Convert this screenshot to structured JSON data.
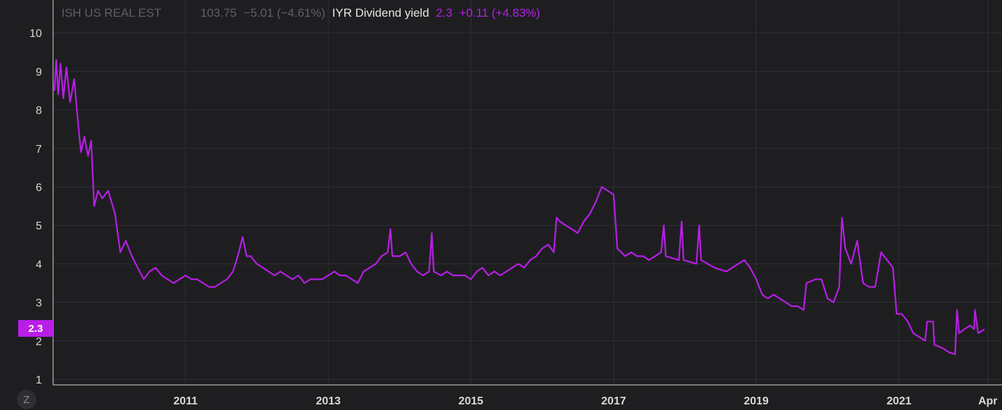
{
  "legend": {
    "ticker_name": "ISH US REAL EST",
    "ticker_price": "103.75",
    "ticker_change": "−5.01 (−4.61%)",
    "series_label": "IYR Dividend yield",
    "series_value": "2.3",
    "series_change": "+0.11 (+4.83%)"
  },
  "price_tag": "2.3",
  "zoom_button": "Z",
  "colors": {
    "background": "#1e1e21",
    "line": "#b81ee6",
    "grid": "#303035",
    "axis_text": "#d8d8d8"
  },
  "chart_data": {
    "type": "line",
    "title": "",
    "xlabel": "",
    "ylabel": "",
    "grid": true,
    "ylim": [
      0.9,
      10.3
    ],
    "x_tick_labels": [
      "2011",
      "2013",
      "2015",
      "2017",
      "2019",
      "2021",
      "Apr"
    ],
    "y_tick_labels": [
      "1",
      "2",
      "3",
      "4",
      "5",
      "6",
      "7",
      "8",
      "9",
      "10"
    ],
    "series": [
      {
        "name": "IYR Dividend yield",
        "color": "#b81ee6",
        "points": [
          [
            "2009-03-01",
            8.5
          ],
          [
            "2009-03-10",
            9.3
          ],
          [
            "2009-03-20",
            8.4
          ],
          [
            "2009-04-01",
            9.2
          ],
          [
            "2009-04-15",
            8.3
          ],
          [
            "2009-05-01",
            9.1
          ],
          [
            "2009-05-20",
            8.2
          ],
          [
            "2009-06-10",
            8.8
          ],
          [
            "2009-07-01",
            7.6
          ],
          [
            "2009-07-15",
            6.9
          ],
          [
            "2009-08-01",
            7.3
          ],
          [
            "2009-08-20",
            6.8
          ],
          [
            "2009-09-05",
            7.2
          ],
          [
            "2009-09-20",
            5.5
          ],
          [
            "2009-10-10",
            5.9
          ],
          [
            "2009-11-01",
            5.7
          ],
          [
            "2009-12-01",
            5.9
          ],
          [
            "2010-01-05",
            5.3
          ],
          [
            "2010-02-01",
            4.3
          ],
          [
            "2010-03-01",
            4.6
          ],
          [
            "2010-04-01",
            4.2
          ],
          [
            "2010-05-01",
            3.9
          ],
          [
            "2010-06-01",
            3.6
          ],
          [
            "2010-07-01",
            3.8
          ],
          [
            "2010-08-01",
            3.9
          ],
          [
            "2010-09-01",
            3.7
          ],
          [
            "2010-10-01",
            3.6
          ],
          [
            "2010-11-01",
            3.5
          ],
          [
            "2010-12-01",
            3.6
          ],
          [
            "2011-01-01",
            3.7
          ],
          [
            "2011-02-01",
            3.6
          ],
          [
            "2011-03-01",
            3.6
          ],
          [
            "2011-04-01",
            3.5
          ],
          [
            "2011-05-01",
            3.4
          ],
          [
            "2011-06-01",
            3.4
          ],
          [
            "2011-07-01",
            3.5
          ],
          [
            "2011-08-01",
            3.6
          ],
          [
            "2011-09-01",
            3.8
          ],
          [
            "2011-10-01",
            4.3
          ],
          [
            "2011-10-20",
            4.7
          ],
          [
            "2011-11-10",
            4.2
          ],
          [
            "2011-12-01",
            4.2
          ],
          [
            "2012-01-01",
            4.0
          ],
          [
            "2012-02-01",
            3.9
          ],
          [
            "2012-03-01",
            3.8
          ],
          [
            "2012-04-01",
            3.7
          ],
          [
            "2012-05-01",
            3.8
          ],
          [
            "2012-06-01",
            3.7
          ],
          [
            "2012-07-01",
            3.6
          ],
          [
            "2012-08-01",
            3.7
          ],
          [
            "2012-09-01",
            3.5
          ],
          [
            "2012-10-01",
            3.6
          ],
          [
            "2012-11-01",
            3.6
          ],
          [
            "2012-12-01",
            3.6
          ],
          [
            "2013-01-01",
            3.7
          ],
          [
            "2013-02-01",
            3.8
          ],
          [
            "2013-03-01",
            3.7
          ],
          [
            "2013-04-01",
            3.7
          ],
          [
            "2013-05-01",
            3.6
          ],
          [
            "2013-06-01",
            3.5
          ],
          [
            "2013-07-01",
            3.8
          ],
          [
            "2013-08-01",
            3.9
          ],
          [
            "2013-09-01",
            4.0
          ],
          [
            "2013-10-01",
            4.2
          ],
          [
            "2013-11-01",
            4.3
          ],
          [
            "2013-11-15",
            4.9
          ],
          [
            "2013-11-25",
            4.2
          ],
          [
            "2014-01-01",
            4.2
          ],
          [
            "2014-02-01",
            4.3
          ],
          [
            "2014-03-01",
            4.0
          ],
          [
            "2014-04-01",
            3.8
          ],
          [
            "2014-05-01",
            3.7
          ],
          [
            "2014-06-01",
            3.8
          ],
          [
            "2014-06-15",
            4.8
          ],
          [
            "2014-06-25",
            3.8
          ],
          [
            "2014-08-01",
            3.7
          ],
          [
            "2014-09-01",
            3.8
          ],
          [
            "2014-10-01",
            3.7
          ],
          [
            "2014-11-01",
            3.7
          ],
          [
            "2014-12-01",
            3.7
          ],
          [
            "2015-01-01",
            3.6
          ],
          [
            "2015-02-01",
            3.8
          ],
          [
            "2015-03-01",
            3.9
          ],
          [
            "2015-04-01",
            3.7
          ],
          [
            "2015-05-01",
            3.8
          ],
          [
            "2015-06-01",
            3.7
          ],
          [
            "2015-07-01",
            3.8
          ],
          [
            "2015-08-01",
            3.9
          ],
          [
            "2015-09-01",
            4.0
          ],
          [
            "2015-10-01",
            3.9
          ],
          [
            "2015-11-01",
            4.1
          ],
          [
            "2015-12-01",
            4.2
          ],
          [
            "2016-01-01",
            4.4
          ],
          [
            "2016-02-01",
            4.5
          ],
          [
            "2016-03-01",
            4.3
          ],
          [
            "2016-03-15",
            5.2
          ],
          [
            "2016-04-01",
            5.1
          ],
          [
            "2016-05-01",
            5.0
          ],
          [
            "2016-06-01",
            4.9
          ],
          [
            "2016-07-01",
            4.8
          ],
          [
            "2016-08-01",
            5.1
          ],
          [
            "2016-09-01",
            5.3
          ],
          [
            "2016-10-01",
            5.6
          ],
          [
            "2016-11-01",
            6.0
          ],
          [
            "2016-12-01",
            5.9
          ],
          [
            "2017-01-01",
            5.8
          ],
          [
            "2017-01-20",
            4.4
          ],
          [
            "2017-03-01",
            4.2
          ],
          [
            "2017-04-01",
            4.3
          ],
          [
            "2017-05-01",
            4.2
          ],
          [
            "2017-06-01",
            4.2
          ],
          [
            "2017-07-01",
            4.1
          ],
          [
            "2017-08-01",
            4.2
          ],
          [
            "2017-09-01",
            4.3
          ],
          [
            "2017-09-15",
            5.0
          ],
          [
            "2017-09-25",
            4.2
          ],
          [
            "2017-12-01",
            4.1
          ],
          [
            "2017-12-15",
            5.1
          ],
          [
            "2017-12-25",
            4.1
          ],
          [
            "2018-03-01",
            4.0
          ],
          [
            "2018-03-15",
            5.0
          ],
          [
            "2018-03-25",
            4.1
          ],
          [
            "2018-06-01",
            3.9
          ],
          [
            "2018-08-01",
            3.8
          ],
          [
            "2018-10-01",
            4.0
          ],
          [
            "2018-11-01",
            4.1
          ],
          [
            "2018-12-01",
            3.9
          ],
          [
            "2019-01-01",
            3.6
          ],
          [
            "2019-02-01",
            3.2
          ],
          [
            "2019-03-01",
            3.1
          ],
          [
            "2019-04-01",
            3.2
          ],
          [
            "2019-05-01",
            3.1
          ],
          [
            "2019-06-01",
            3.0
          ],
          [
            "2019-07-01",
            2.9
          ],
          [
            "2019-08-01",
            2.9
          ],
          [
            "2019-09-01",
            2.8
          ],
          [
            "2019-09-15",
            3.5
          ],
          [
            "2019-11-01",
            3.6
          ],
          [
            "2019-12-01",
            3.6
          ],
          [
            "2020-01-01",
            3.1
          ],
          [
            "2020-02-01",
            3.0
          ],
          [
            "2020-03-01",
            3.4
          ],
          [
            "2020-03-15",
            5.2
          ],
          [
            "2020-04-01",
            4.4
          ],
          [
            "2020-05-01",
            4.0
          ],
          [
            "2020-06-01",
            4.6
          ],
          [
            "2020-07-01",
            3.5
          ],
          [
            "2020-08-01",
            3.4
          ],
          [
            "2020-09-01",
            3.4
          ],
          [
            "2020-10-01",
            4.3
          ],
          [
            "2020-11-01",
            4.1
          ],
          [
            "2020-12-01",
            3.9
          ],
          [
            "2020-12-20",
            2.7
          ],
          [
            "2021-01-15",
            2.7
          ],
          [
            "2021-02-15",
            2.5
          ],
          [
            "2021-03-15",
            2.2
          ],
          [
            "2021-04-15",
            2.1
          ],
          [
            "2021-05-15",
            2.0
          ],
          [
            "2021-05-25",
            2.5
          ],
          [
            "2021-06-25",
            2.5
          ],
          [
            "2021-07-01",
            1.9
          ],
          [
            "2021-08-15",
            1.8
          ],
          [
            "2021-09-15",
            1.7
          ],
          [
            "2021-10-15",
            1.65
          ],
          [
            "2021-10-25",
            2.8
          ],
          [
            "2021-11-05",
            2.2
          ],
          [
            "2021-12-01",
            2.3
          ],
          [
            "2022-01-01",
            2.4
          ],
          [
            "2022-01-20",
            2.3
          ],
          [
            "2022-01-25",
            2.8
          ],
          [
            "2022-02-10",
            2.2
          ],
          [
            "2022-03-15",
            2.3
          ]
        ]
      }
    ]
  }
}
